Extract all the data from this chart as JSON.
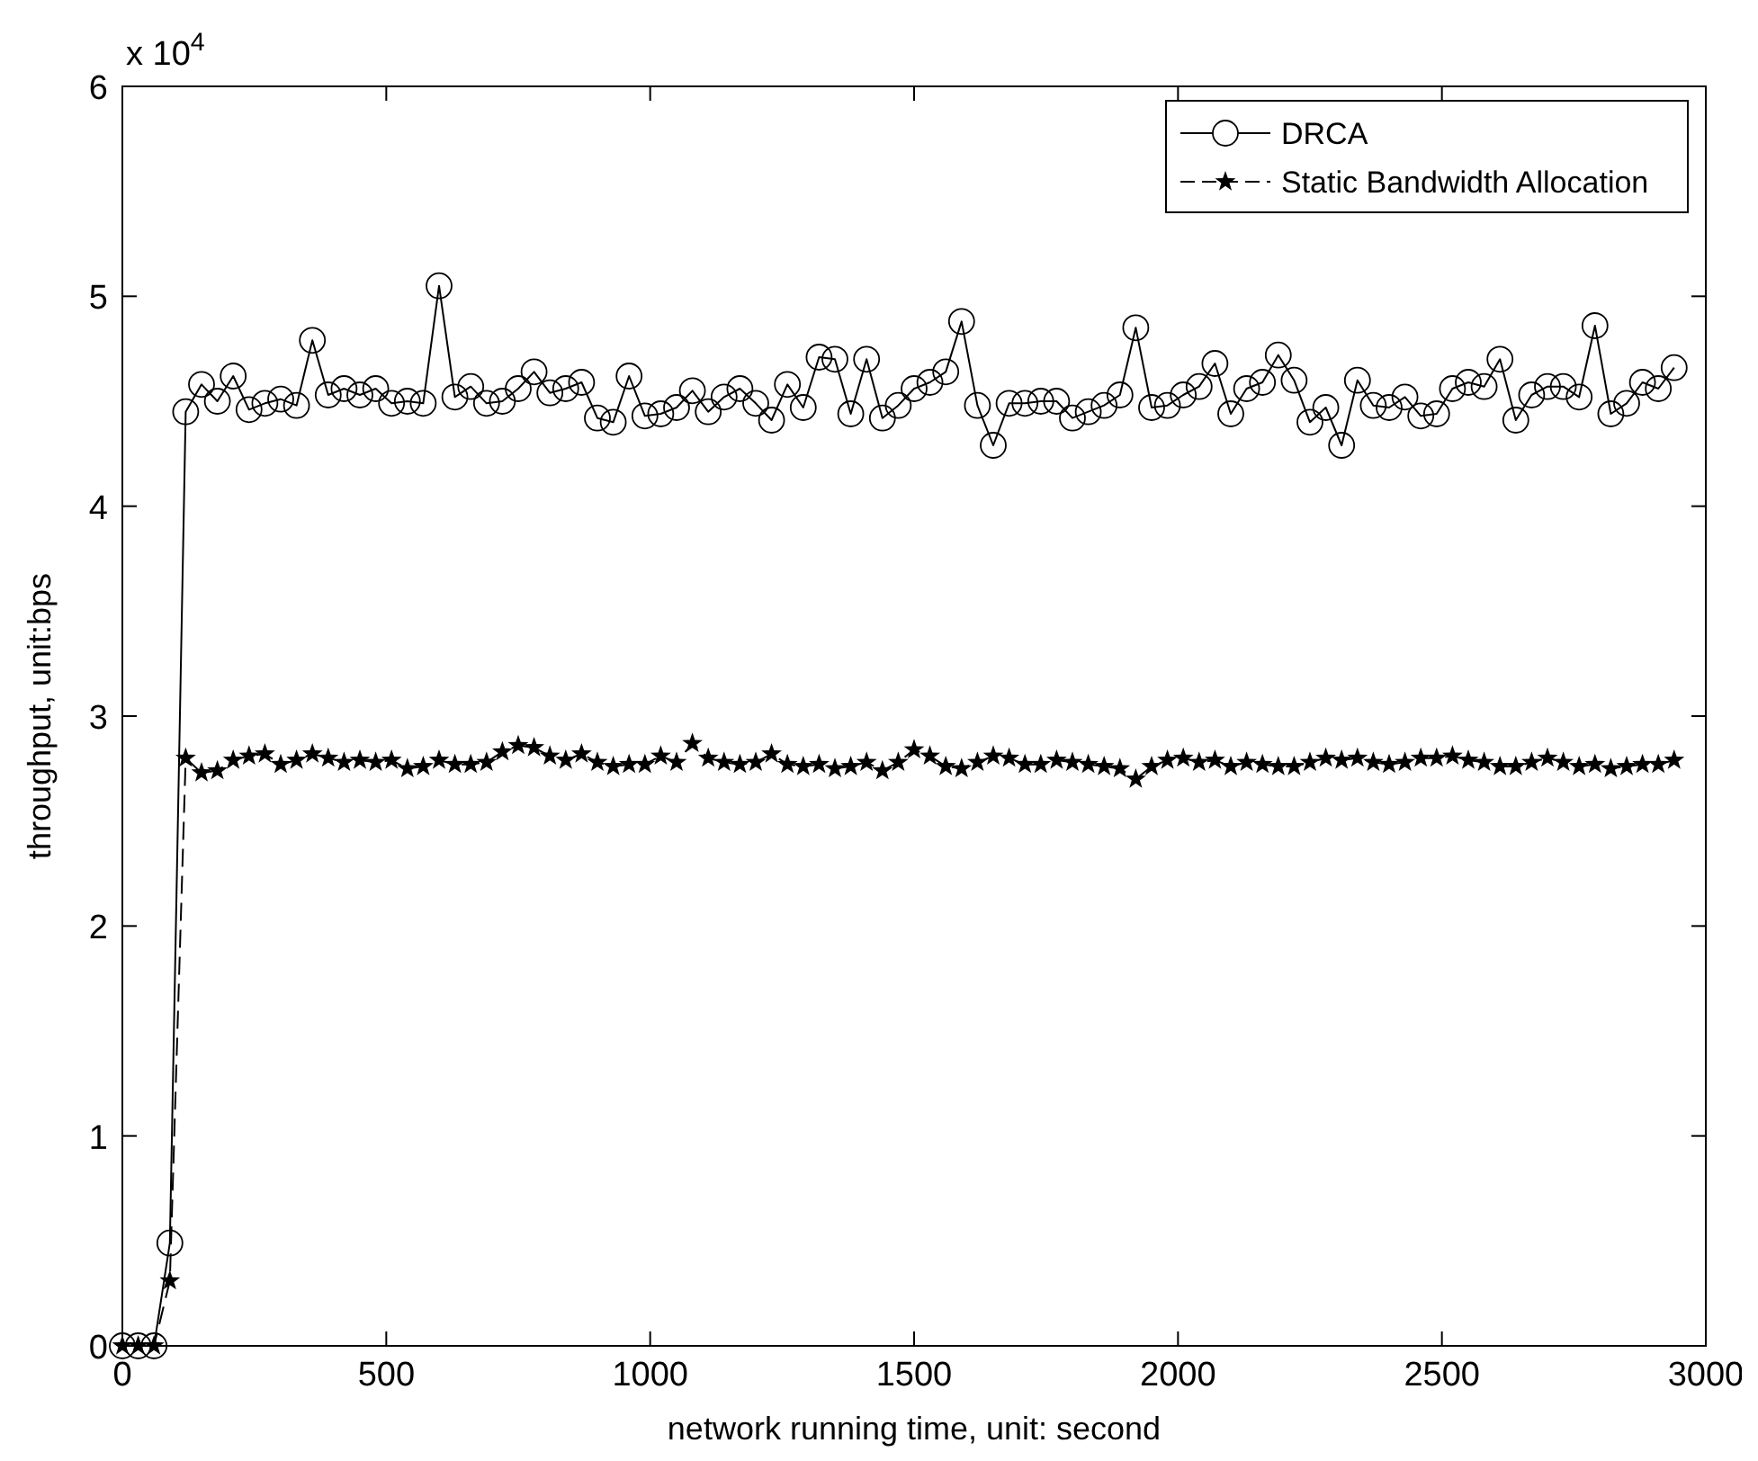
{
  "chart_data": {
    "type": "line",
    "xlabel": "network running time, unit: second",
    "ylabel": "throughput, unit:bps",
    "annotations": [
      "x 10$^{4}$"
    ],
    "x": [
      0,
      30,
      60,
      90,
      120,
      150,
      180,
      210,
      240,
      270,
      300,
      330,
      360,
      390,
      420,
      450,
      480,
      510,
      540,
      570,
      600,
      630,
      660,
      690,
      720,
      750,
      780,
      810,
      840,
      870,
      900,
      930,
      960,
      990,
      1020,
      1050,
      1080,
      1110,
      1140,
      1170,
      1200,
      1230,
      1260,
      1290,
      1320,
      1350,
      1380,
      1410,
      1440,
      1470,
      1500,
      1530,
      1560,
      1590,
      1620,
      1650,
      1680,
      1710,
      1740,
      1770,
      1800,
      1830,
      1860,
      1890,
      1920,
      1950,
      1980,
      2010,
      2040,
      2070,
      2100,
      2130,
      2160,
      2190,
      2220,
      2250,
      2280,
      2310,
      2340,
      2370,
      2400,
      2430,
      2460,
      2490,
      2520,
      2550,
      2580,
      2610,
      2640,
      2670,
      2700,
      2730,
      2760,
      2790,
      2820,
      2850,
      2880,
      2910,
      2940
    ],
    "series": [
      {
        "name": "DRCA",
        "color": "#000000",
        "marker": "circle",
        "line_style": "solid",
        "values": [
          0,
          0,
          0,
          0.49,
          4.45,
          4.58,
          4.5,
          4.62,
          4.46,
          4.49,
          4.51,
          4.48,
          4.79,
          4.53,
          4.56,
          4.53,
          4.56,
          4.49,
          4.5,
          4.49,
          5.05,
          4.52,
          4.57,
          4.49,
          4.5,
          4.56,
          4.64,
          4.54,
          4.56,
          4.59,
          4.42,
          4.4,
          4.62,
          4.43,
          4.44,
          4.47,
          4.55,
          4.45,
          4.52,
          4.56,
          4.49,
          4.41,
          4.58,
          4.47,
          4.71,
          4.7,
          4.44,
          4.7,
          4.42,
          4.48,
          4.56,
          4.59,
          4.64,
          4.88,
          4.48,
          4.29,
          4.49,
          4.49,
          4.5,
          4.5,
          4.42,
          4.45,
          4.48,
          4.53,
          4.85,
          4.47,
          4.48,
          4.53,
          4.57,
          4.68,
          4.44,
          4.56,
          4.59,
          4.72,
          4.6,
          4.4,
          4.47,
          4.29,
          4.6,
          4.48,
          4.47,
          4.52,
          4.43,
          4.44,
          4.56,
          4.59,
          4.57,
          4.7,
          4.41,
          4.53,
          4.57,
          4.57,
          4.52,
          4.86,
          4.44,
          4.49,
          4.59,
          4.56,
          4.66
        ]
      },
      {
        "name": "Static Bandwidth Allocation",
        "color": "#000000",
        "marker": "star",
        "line_style": "dashed",
        "values": [
          0,
          0,
          0,
          0.31,
          2.8,
          2.73,
          2.74,
          2.79,
          2.81,
          2.82,
          2.77,
          2.79,
          2.82,
          2.8,
          2.78,
          2.79,
          2.78,
          2.79,
          2.75,
          2.76,
          2.79,
          2.77,
          2.77,
          2.78,
          2.83,
          2.86,
          2.85,
          2.81,
          2.79,
          2.82,
          2.78,
          2.76,
          2.77,
          2.77,
          2.81,
          2.78,
          2.87,
          2.8,
          2.78,
          2.77,
          2.78,
          2.82,
          2.77,
          2.76,
          2.77,
          2.75,
          2.76,
          2.78,
          2.74,
          2.78,
          2.84,
          2.81,
          2.76,
          2.75,
          2.78,
          2.81,
          2.8,
          2.77,
          2.77,
          2.79,
          2.78,
          2.77,
          2.76,
          2.75,
          2.7,
          2.76,
          2.79,
          2.8,
          2.78,
          2.79,
          2.76,
          2.78,
          2.77,
          2.76,
          2.76,
          2.78,
          2.8,
          2.79,
          2.8,
          2.78,
          2.77,
          2.78,
          2.8,
          2.8,
          2.81,
          2.79,
          2.78,
          2.76,
          2.76,
          2.78,
          2.8,
          2.78,
          2.76,
          2.77,
          2.75,
          2.76,
          2.77,
          2.77,
          2.79
        ]
      }
    ],
    "xlim": [
      0,
      3000
    ],
    "xticks": [
      0,
      500,
      1000,
      1500,
      2000,
      2500,
      3000
    ],
    "ylim": [
      0,
      6
    ],
    "yticks": [
      0,
      1,
      2,
      3,
      4,
      5,
      6
    ],
    "legend": "top right",
    "grid": false
  }
}
